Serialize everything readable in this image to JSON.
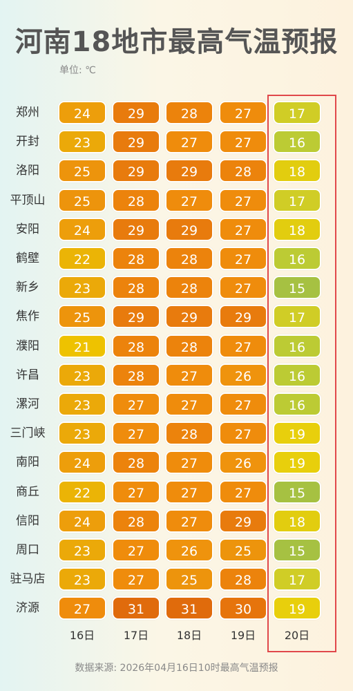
{
  "title": "河南18地市最高气温预报",
  "unit": "单位: ℃",
  "source": "数据来源: 2026年04月16日10时最高气温预报",
  "chart_data": {
    "type": "table",
    "title": "河南18地市最高气温预报",
    "unit": "℃",
    "days": [
      "16日",
      "17日",
      "18日",
      "19日",
      "20日"
    ],
    "highlighted_day": "20日",
    "cities": [
      {
        "name": "郑州",
        "values": [
          24,
          29,
          28,
          27,
          17
        ]
      },
      {
        "name": "开封",
        "values": [
          23,
          29,
          27,
          27,
          16
        ]
      },
      {
        "name": "洛阳",
        "values": [
          25,
          29,
          29,
          28,
          18
        ]
      },
      {
        "name": "平顶山",
        "values": [
          25,
          28,
          27,
          27,
          17
        ]
      },
      {
        "name": "安阳",
        "values": [
          24,
          29,
          29,
          27,
          18
        ]
      },
      {
        "name": "鹤壁",
        "values": [
          22,
          28,
          28,
          27,
          16
        ]
      },
      {
        "name": "新乡",
        "values": [
          23,
          28,
          28,
          27,
          15
        ]
      },
      {
        "name": "焦作",
        "values": [
          25,
          29,
          29,
          29,
          17
        ]
      },
      {
        "name": "濮阳",
        "values": [
          21,
          28,
          28,
          27,
          16
        ]
      },
      {
        "name": "许昌",
        "values": [
          23,
          28,
          27,
          26,
          16
        ]
      },
      {
        "name": "漯河",
        "values": [
          23,
          27,
          27,
          27,
          16
        ]
      },
      {
        "name": "三门峡",
        "values": [
          23,
          27,
          28,
          27,
          19
        ]
      },
      {
        "name": "南阳",
        "values": [
          24,
          28,
          27,
          26,
          19
        ]
      },
      {
        "name": "商丘",
        "values": [
          22,
          27,
          27,
          27,
          15
        ]
      },
      {
        "name": "信阳",
        "values": [
          24,
          28,
          27,
          29,
          18
        ]
      },
      {
        "name": "周口",
        "values": [
          23,
          27,
          26,
          25,
          15
        ]
      },
      {
        "name": "驻马店",
        "values": [
          23,
          27,
          25,
          28,
          17
        ]
      },
      {
        "name": "济源",
        "values": [
          27,
          31,
          31,
          30,
          19
        ]
      }
    ],
    "color_scale": {
      "15": "#a6c142",
      "16": "#bccb34",
      "17": "#d0cd26",
      "18": "#e2cd0f",
      "19": "#e8cf0c",
      "21": "#eec200",
      "22": "#ebb406",
      "23": "#eba909",
      "24": "#ed9e0b",
      "25": "#ed940c",
      "26": "#ef930d",
      "27": "#ef8c0c",
      "28": "#ec830c",
      "29": "#e87b0d",
      "30": "#e6740c",
      "31": "#e06b0c"
    }
  }
}
